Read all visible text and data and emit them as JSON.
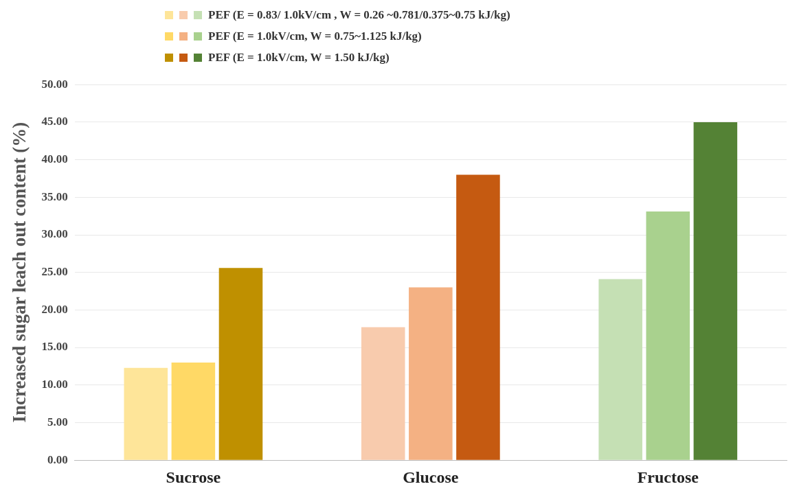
{
  "chart_data": {
    "type": "bar",
    "ylabel": "Increased sugar leach out content (%)",
    "categories": [
      "Sucrose",
      "Glucose",
      "Fructose"
    ],
    "series": [
      {
        "name": "PEF (E = 0.83/ 1.0kV/cm , W = 0.26 ~0.781/0.375~0.75 kJ/kg)",
        "colors": [
          "#fee599",
          "#f8cbad",
          "#c5e0b4"
        ],
        "values": [
          12.3,
          17.7,
          24.1
        ]
      },
      {
        "name": "PEF (E = 1.0kV/cm, W = 0.75~1.125 kJ/kg)",
        "colors": [
          "#ffd966",
          "#f4b183",
          "#a9d18e"
        ],
        "values": [
          13.0,
          23.0,
          33.1
        ]
      },
      {
        "name": "PEF (E = 1.0kV/cm, W = 1.50 kJ/kg)",
        "colors": [
          "#bf9000",
          "#c55a11",
          "#548235"
        ],
        "values": [
          25.6,
          38.0,
          45.0
        ]
      }
    ],
    "ylim": [
      0,
      50
    ],
    "yticks": [
      {
        "value": 0,
        "label": "0.00"
      },
      {
        "value": 5,
        "label": "5.00"
      },
      {
        "value": 10,
        "label": "10.00"
      },
      {
        "value": 15,
        "label": "15.00"
      },
      {
        "value": 20,
        "label": "20.00"
      },
      {
        "value": 25,
        "label": "25.00"
      },
      {
        "value": 30,
        "label": "30.00"
      },
      {
        "value": 35,
        "label": "35.00"
      },
      {
        "value": 40,
        "label": "40.00"
      },
      {
        "value": 45,
        "label": "45.00"
      },
      {
        "value": 50,
        "label": "50.00"
      }
    ],
    "grid": "y",
    "legend": "top"
  }
}
